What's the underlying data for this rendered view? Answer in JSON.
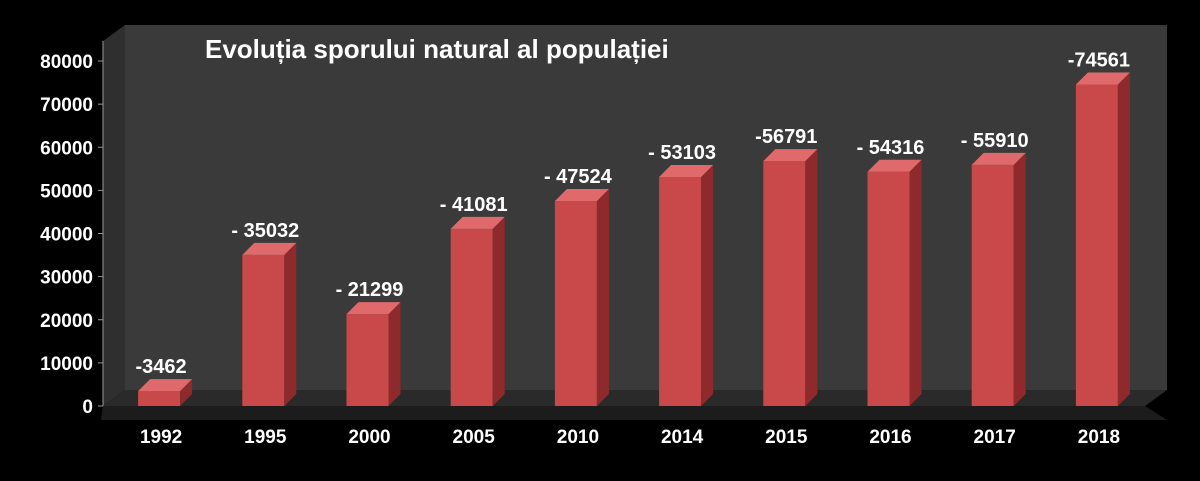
{
  "chart_data": {
    "type": "bar",
    "title": "Evoluția sporului natural al populației",
    "xlabel": "",
    "ylabel": "",
    "categories": [
      "1992",
      "1995",
      "2000",
      "2005",
      "2010",
      "2014",
      "2015",
      "2016",
      "2017",
      "2018"
    ],
    "values": [
      3462,
      35032,
      21299,
      41081,
      47524,
      53103,
      56791,
      54316,
      55910,
      74561
    ],
    "data_labels": [
      "-3462",
      "- 35032",
      "- 21299",
      "- 41081",
      "- 47524",
      "- 53103",
      "-56791",
      "- 54316",
      "- 55910",
      "-74561"
    ],
    "ylim": [
      0,
      80000
    ],
    "yticks": [
      "0",
      "10000",
      "20000",
      "30000",
      "40000",
      "50000",
      "60000",
      "70000",
      "80000"
    ],
    "grid": false,
    "legend": "none",
    "colors": {
      "background": "#000000",
      "plot_wall": "#3a3a3a",
      "floor": "#2a2a2a",
      "bar_front": "#c9494a",
      "bar_side": "#8e2a2b",
      "bar_top": "#e06a6b",
      "text": "#ffffff"
    }
  }
}
